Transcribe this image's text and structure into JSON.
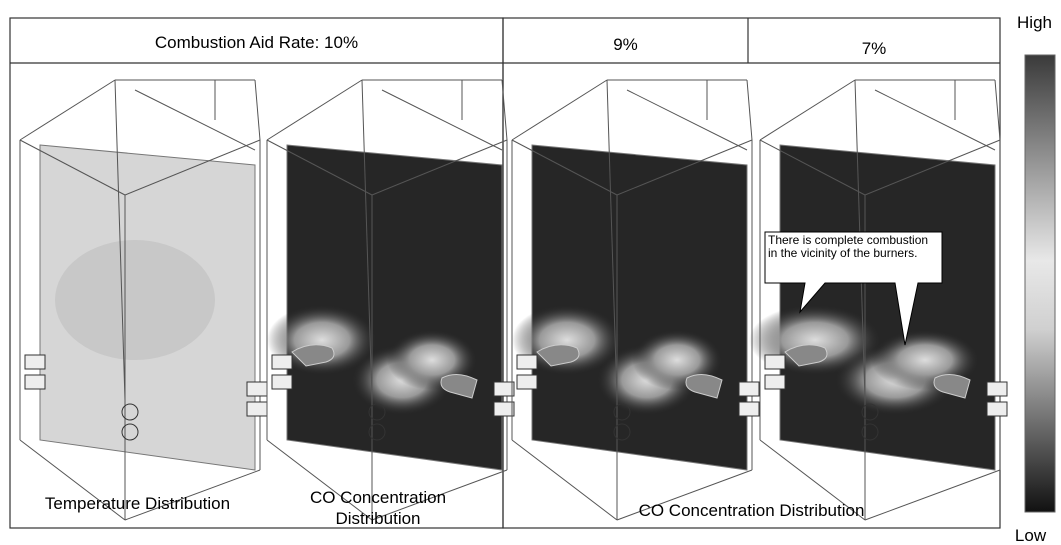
{
  "header": {
    "cells": [
      "Combustion Aid Rate: 10%",
      "9%",
      "7%"
    ]
  },
  "captions": [
    "Temperature Distribution",
    "CO Concentration Distribution",
    "CO Concentration Distribution"
  ],
  "callout": "There is complete combustion in the vicinity of the burners.",
  "legend": {
    "high": "High",
    "low": "Low"
  }
}
